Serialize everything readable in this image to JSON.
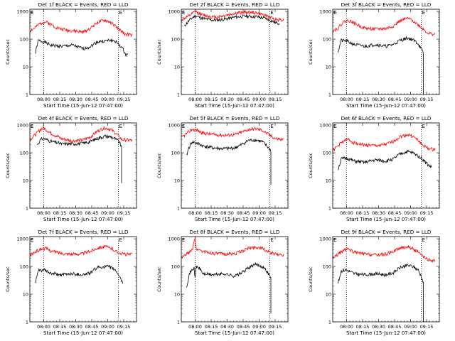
{
  "figure": {
    "xlabel": "Start Time (15-Jun-12 07:47:00)",
    "ylabel": "Counts/sec",
    "x_tick_labels": [
      "08:00",
      "08:15",
      "08:30",
      "08:45",
      "09:00",
      "09:15"
    ],
    "y_tick_labels": [
      "1",
      "10",
      "100",
      "1000"
    ],
    "marker_label": "E",
    "colors": {
      "events": "#000000",
      "lld": "#ff0000",
      "marker": "#000000"
    }
  },
  "chart_data": [
    {
      "type": "line",
      "title": "Det 1f BLACK = Events, RED = LLD",
      "xlabel": "Start Time (15-Jun-12 07:47:00)",
      "ylabel": "Counts/sec",
      "yscale": "log",
      "ylim": [
        1,
        1200
      ],
      "x_ticks": [
        "08:00",
        "08:15",
        "08:30",
        "08:45",
        "09:00",
        "09:15"
      ],
      "markers_min": [
        13,
        83
      ],
      "series": [
        {
          "name": "Events",
          "color": "#000000",
          "start": 5,
          "end": 92,
          "x": [
            5,
            8,
            13,
            20,
            30,
            40,
            50,
            57,
            63,
            70,
            75,
            80,
            85,
            88,
            90,
            92
          ],
          "y": [
            30,
            90,
            80,
            60,
            55,
            60,
            45,
            55,
            80,
            85,
            90,
            85,
            55,
            40,
            25,
            35
          ],
          "tail": null
        },
        {
          "name": "LLD",
          "color": "#ff0000",
          "start": 0,
          "end": 96,
          "x": [
            0,
            5,
            10,
            15,
            20,
            25,
            30,
            40,
            50,
            57,
            63,
            70,
            75,
            80,
            85,
            90,
            96
          ],
          "y": [
            200,
            260,
            380,
            420,
            340,
            260,
            230,
            200,
            180,
            250,
            400,
            480,
            420,
            300,
            200,
            150,
            140
          ],
          "tail": null
        }
      ]
    },
    {
      "type": "line",
      "title": "Det 2f BLACK = Events, RED = LLD",
      "xlabel": "Start Time (15-Jun-12 07:47:00)",
      "ylabel": "Counts/sec",
      "yscale": "log",
      "ylim": [
        1,
        1200
      ],
      "x_ticks": [
        "08:00",
        "08:15",
        "08:30",
        "08:45",
        "09:00",
        "09:15"
      ],
      "markers_min": [
        13,
        83
      ],
      "series": [
        {
          "name": "Events",
          "color": "#000000",
          "start": 3,
          "end": 92,
          "x": [
            3,
            8,
            13,
            20,
            30,
            40,
            50,
            60,
            70,
            80,
            88,
            92
          ],
          "y": [
            300,
            500,
            700,
            560,
            480,
            520,
            620,
            680,
            650,
            550,
            400,
            380
          ],
          "tail": null
        },
        {
          "name": "LLD",
          "color": "#ff0000",
          "start": 0,
          "end": 96,
          "x": [
            0,
            8,
            13,
            20,
            30,
            40,
            50,
            60,
            70,
            80,
            88,
            96
          ],
          "y": [
            500,
            700,
            1000,
            750,
            620,
            700,
            850,
            950,
            900,
            700,
            520,
            500
          ],
          "tail": null
        }
      ]
    },
    {
      "type": "line",
      "title": "Det 3f BLACK = Events, RED = LLD",
      "xlabel": "Start Time (15-Jun-12 07:47:00)",
      "ylabel": "Counts/sec",
      "yscale": "log",
      "ylim": [
        1,
        1200
      ],
      "x_ticks": [
        "08:00",
        "08:15",
        "08:30",
        "08:45",
        "09:00",
        "09:15"
      ],
      "markers_min": [
        13,
        83
      ],
      "series": [
        {
          "name": "Events",
          "color": "#000000",
          "start": 5,
          "end": 85,
          "x": [
            5,
            8,
            13,
            20,
            30,
            40,
            50,
            57,
            63,
            70,
            75,
            80,
            83,
            85
          ],
          "y": [
            35,
            90,
            85,
            65,
            55,
            65,
            55,
            65,
            90,
            110,
            95,
            70,
            45,
            30
          ],
          "tail": 1
        },
        {
          "name": "LLD",
          "color": "#ff0000",
          "start": 0,
          "end": 96,
          "x": [
            0,
            5,
            10,
            15,
            20,
            25,
            30,
            40,
            50,
            57,
            63,
            70,
            75,
            80,
            85,
            90,
            96
          ],
          "y": [
            200,
            250,
            420,
            480,
            380,
            300,
            250,
            230,
            240,
            300,
            460,
            560,
            480,
            330,
            230,
            160,
            150
          ],
          "tail": null
        }
      ]
    },
    {
      "type": "line",
      "title": "Det 4f BLACK = Events, RED = LLD",
      "xlabel": "Start Time (15-Jun-12 07:47:00)",
      "ylabel": "Counts/sec",
      "yscale": "log",
      "ylim": [
        1,
        1200
      ],
      "x_ticks": [
        "08:00",
        "08:15",
        "08:30",
        "08:45",
        "09:00",
        "09:15"
      ],
      "markers_min": [
        13,
        83
      ],
      "series": [
        {
          "name": "Events",
          "color": "#000000",
          "start": 7,
          "end": 86,
          "x": [
            7,
            10,
            13,
            20,
            30,
            40,
            50,
            57,
            63,
            70,
            76,
            80,
            84,
            86
          ],
          "y": [
            200,
            300,
            330,
            260,
            210,
            210,
            220,
            260,
            330,
            400,
            380,
            320,
            250,
            150
          ],
          "tail": 8
        },
        {
          "name": "LLD",
          "color": "#ff0000",
          "start": 0,
          "end": 96,
          "x": [
            0,
            5,
            10,
            13,
            20,
            30,
            40,
            50,
            57,
            63,
            70,
            76,
            82,
            86,
            96
          ],
          "y": [
            300,
            450,
            700,
            800,
            500,
            320,
            270,
            290,
            380,
            600,
            800,
            700,
            450,
            300,
            280
          ],
          "tail": null
        }
      ]
    },
    {
      "type": "line",
      "title": "Det 5f BLACK = Events, RED = LLD",
      "xlabel": "Start Time (15-Jun-12 07:47:00)",
      "ylabel": "Counts/sec",
      "yscale": "log",
      "ylim": [
        1,
        1200
      ],
      "x_ticks": [
        "08:00",
        "08:15",
        "08:30",
        "08:45",
        "09:00",
        "09:15"
      ],
      "markers_min": [
        13,
        83
      ],
      "series": [
        {
          "name": "Events",
          "color": "#000000",
          "start": 5,
          "end": 84,
          "x": [
            5,
            7,
            10,
            15,
            20,
            30,
            40,
            50,
            57,
            63,
            70,
            76,
            80,
            84
          ],
          "y": [
            80,
            150,
            250,
            220,
            180,
            150,
            140,
            150,
            200,
            280,
            290,
            250,
            180,
            120
          ],
          "tail": 7
        },
        {
          "name": "LLD",
          "color": "#ff0000",
          "start": 0,
          "end": 96,
          "x": [
            0,
            5,
            10,
            15,
            20,
            30,
            40,
            50,
            57,
            63,
            70,
            76,
            82,
            88,
            96
          ],
          "y": [
            350,
            500,
            700,
            650,
            520,
            460,
            430,
            450,
            560,
            700,
            750,
            650,
            460,
            330,
            300
          ],
          "tail": null
        }
      ]
    },
    {
      "type": "line",
      "title": "Det 6f BLACK = Events, RED = LLD",
      "xlabel": "Start Time (15-Jun-12 07:47:00)",
      "ylabel": "Counts/sec",
      "yscale": "log",
      "ylim": [
        1,
        1200
      ],
      "x_ticks": [
        "08:00",
        "08:15",
        "08:30",
        "08:45",
        "09:00",
        "09:15"
      ],
      "markers_min": [
        13,
        83
      ],
      "series": [
        {
          "name": "Events",
          "color": "#000000",
          "start": 5,
          "end": 93,
          "x": [
            5,
            8,
            13,
            20,
            30,
            40,
            50,
            57,
            63,
            70,
            75,
            80,
            85,
            90,
            93
          ],
          "y": [
            25,
            60,
            65,
            50,
            45,
            55,
            50,
            60,
            90,
            110,
            100,
            80,
            55,
            35,
            30
          ],
          "tail": null
        },
        {
          "name": "LLD",
          "color": "#ff0000",
          "start": 0,
          "end": 96,
          "x": [
            0,
            5,
            10,
            15,
            20,
            30,
            40,
            50,
            57,
            63,
            70,
            75,
            80,
            85,
            90,
            96
          ],
          "y": [
            120,
            180,
            270,
            300,
            230,
            190,
            180,
            200,
            260,
            380,
            450,
            400,
            280,
            180,
            140,
            130
          ],
          "tail": null
        }
      ]
    },
    {
      "type": "line",
      "title": "Det 7f BLACK = Events, RED = LLD",
      "xlabel": "Start Time (15-Jun-12 07:47:00)",
      "ylabel": "Counts/sec",
      "yscale": "log",
      "ylim": [
        1,
        1200
      ],
      "x_ticks": [
        "08:00",
        "08:15",
        "08:30",
        "08:45",
        "09:00",
        "09:15"
      ],
      "markers_min": [
        13,
        83
      ],
      "series": [
        {
          "name": "Events",
          "color": "#000000",
          "start": 5,
          "end": 87,
          "x": [
            5,
            8,
            13,
            20,
            30,
            40,
            50,
            57,
            63,
            70,
            75,
            80,
            84,
            87
          ],
          "y": [
            25,
            70,
            75,
            55,
            50,
            55,
            50,
            60,
            90,
            100,
            95,
            75,
            45,
            25
          ],
          "tail": null
        },
        {
          "name": "LLD",
          "color": "#ff0000",
          "start": 0,
          "end": 96,
          "x": [
            0,
            5,
            10,
            15,
            20,
            30,
            40,
            50,
            57,
            63,
            70,
            76,
            82,
            88,
            96
          ],
          "y": [
            250,
            330,
            420,
            450,
            360,
            300,
            280,
            290,
            360,
            470,
            520,
            460,
            330,
            280,
            270
          ],
          "tail": null
        }
      ]
    },
    {
      "type": "line",
      "title": "Det 8f BLACK = Events, RED = LLD",
      "xlabel": "Start Time (15-Jun-12 07:47:00)",
      "ylabel": "Counts/sec",
      "yscale": "log",
      "ylim": [
        1,
        1200
      ],
      "x_ticks": [
        "08:00",
        "08:15",
        "08:30",
        "08:45",
        "09:00",
        "09:15"
      ],
      "markers_min": [
        13,
        83
      ],
      "series": [
        {
          "name": "Events",
          "color": "#000000",
          "start": 5,
          "end": 84,
          "x": [
            5,
            8,
            12,
            13,
            14,
            18,
            20,
            30,
            40,
            50,
            57,
            63,
            70,
            76,
            80,
            84
          ],
          "y": [
            20,
            60,
            90,
            35,
            100,
            80,
            55,
            50,
            55,
            45,
            60,
            90,
            120,
            100,
            70,
            40
          ],
          "tail": 2
        },
        {
          "name": "LLD",
          "color": "#ff0000",
          "start": 0,
          "end": 96,
          "x": [
            0,
            5,
            10,
            13,
            14,
            16,
            20,
            30,
            40,
            50,
            57,
            63,
            70,
            76,
            82,
            88,
            96
          ],
          "y": [
            200,
            280,
            380,
            1200,
            400,
            420,
            350,
            300,
            280,
            290,
            360,
            460,
            500,
            450,
            330,
            280,
            260
          ],
          "tail": null
        }
      ]
    },
    {
      "type": "line",
      "title": "Det 9f BLACK = Events, RED = LLD",
      "xlabel": "Start Time (15-Jun-12 07:47:00)",
      "ylabel": "Counts/sec",
      "yscale": "log",
      "ylim": [
        1,
        1200
      ],
      "x_ticks": [
        "08:00",
        "08:15",
        "08:30",
        "08:45",
        "09:00",
        "09:15"
      ],
      "markers_min": [
        13,
        83
      ],
      "series": [
        {
          "name": "Events",
          "color": "#000000",
          "start": 5,
          "end": 85,
          "x": [
            5,
            8,
            13,
            20,
            30,
            40,
            50,
            57,
            63,
            70,
            75,
            80,
            83,
            85
          ],
          "y": [
            25,
            70,
            75,
            55,
            50,
            55,
            50,
            60,
            90,
            110,
            100,
            75,
            45,
            25
          ],
          "tail": 1
        },
        {
          "name": "LLD",
          "color": "#ff0000",
          "start": 0,
          "end": 96,
          "x": [
            0,
            5,
            10,
            15,
            20,
            30,
            40,
            50,
            57,
            63,
            70,
            75,
            80,
            85,
            90,
            96
          ],
          "y": [
            200,
            280,
            380,
            430,
            330,
            280,
            260,
            280,
            360,
            460,
            520,
            450,
            320,
            220,
            170,
            160
          ],
          "tail": null
        }
      ]
    }
  ]
}
